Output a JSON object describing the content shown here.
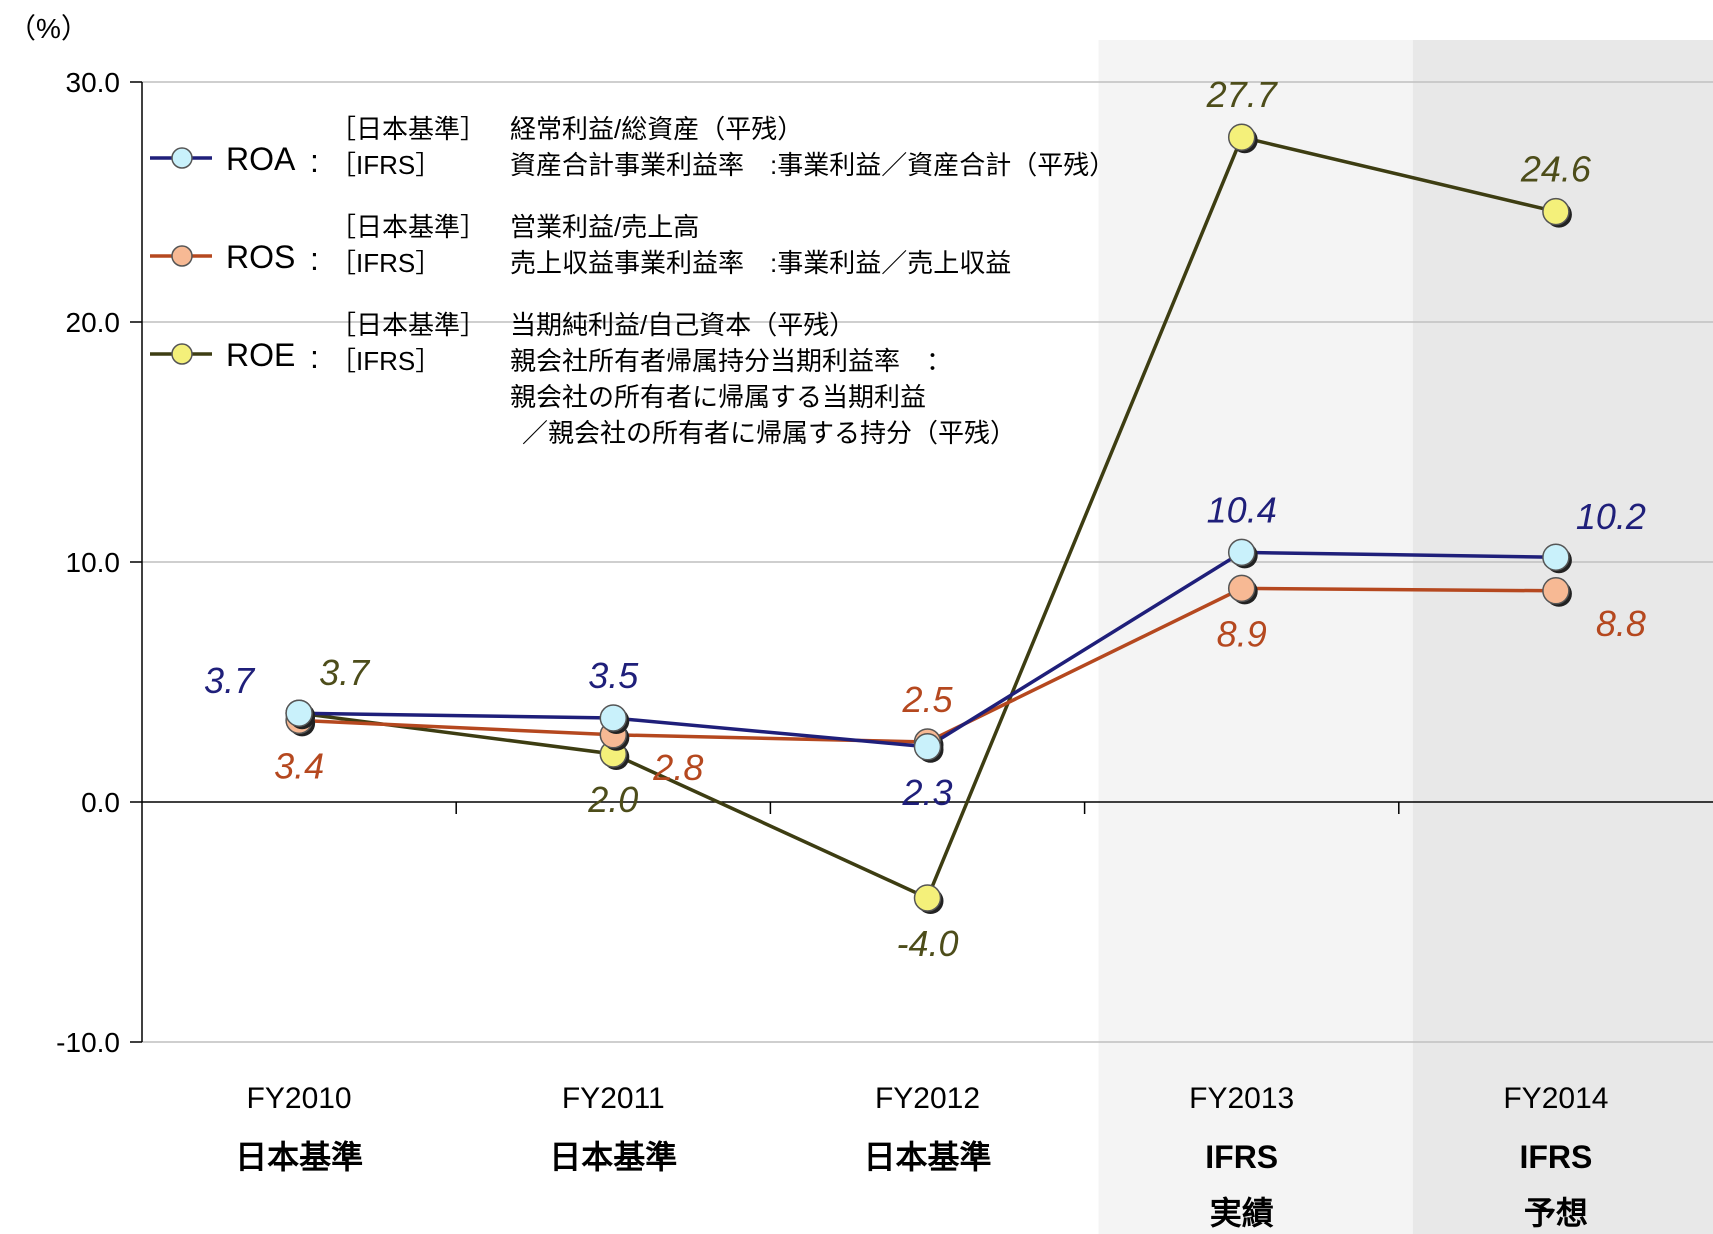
{
  "chart_data": {
    "type": "line",
    "ylabel": "（%）",
    "ylim": [
      -10,
      30
    ],
    "yticks": [
      "30.0",
      "20.0",
      "10.0",
      "0.0",
      "-10.0"
    ],
    "ytick_values": [
      30,
      20,
      10,
      0,
      -10
    ],
    "grid": true,
    "categories": [
      {
        "label": "FY2010",
        "sub": [
          "日本基準"
        ]
      },
      {
        "label": "FY2011",
        "sub": [
          "日本基準"
        ]
      },
      {
        "label": "FY2012",
        "sub": [
          "日本基準"
        ]
      },
      {
        "label": "FY2013",
        "sub": [
          "IFRS",
          "実績"
        ]
      },
      {
        "label": "FY2014",
        "sub": [
          "IFRS",
          "予想"
        ]
      }
    ],
    "shaded_columns": [
      {
        "category_index": 3,
        "color": "#f4f4f4"
      },
      {
        "category_index": 4,
        "color": "#e8e8e8"
      }
    ],
    "series": [
      {
        "name": "ROA",
        "values": [
          3.7,
          3.5,
          2.3,
          10.4,
          10.2
        ],
        "labels": [
          "3.7",
          "3.5",
          "2.3",
          "10.4",
          "10.2"
        ],
        "line_color": "#1f1f7a",
        "marker_color": "#c9f1fb",
        "label_color": "#1f1f7a",
        "label_pos": [
          "left-above",
          "above",
          "below",
          "above",
          "right-above"
        ]
      },
      {
        "name": "ROS",
        "values": [
          3.4,
          2.8,
          2.5,
          8.9,
          8.8
        ],
        "labels": [
          "3.4",
          "2.8",
          "2.5",
          "8.9",
          "8.8"
        ],
        "line_color": "#b5481f",
        "marker_color": "#f7b994",
        "label_color": "#b5481f",
        "label_pos": [
          "below",
          "right-below",
          "above",
          "below",
          "right-below"
        ]
      },
      {
        "name": "ROE",
        "values": [
          3.7,
          2.0,
          -4.0,
          27.7,
          24.6
        ],
        "labels": [
          "3.7",
          "2.0",
          "-4.0",
          "27.7",
          "24.6"
        ],
        "line_color": "#3d3d12",
        "marker_color": "#f4f07a",
        "label_color": "#4d4d1a",
        "label_pos": [
          "right-above",
          "below",
          "below",
          "above",
          "above"
        ]
      }
    ],
    "legend": [
      {
        "series": "ROA",
        "symbol_text": "ROA",
        "lines": [
          [
            "［日本基準］",
            "経常利益/総資産（平残）"
          ],
          [
            "［IFRS］",
            "資産合計事業利益率　:事業利益／資産合計（平残）"
          ]
        ]
      },
      {
        "series": "ROS",
        "symbol_text": "ROS",
        "lines": [
          [
            "［日本基準］",
            "営業利益/売上高"
          ],
          [
            "［IFRS］",
            "売上収益事業利益率　:事業利益／売上収益"
          ]
        ]
      },
      {
        "series": "ROE",
        "symbol_text": "ROE",
        "lines": [
          [
            "［日本基準］",
            "当期純利益/自己資本（平残）"
          ],
          [
            "［IFRS］",
            "親会社所有者帰属持分当期利益率　："
          ],
          [
            "",
            "親会社の所有者に帰属する当期利益"
          ],
          [
            "",
            "／親会社の所有者に帰属する持分（平残）"
          ]
        ]
      }
    ]
  }
}
